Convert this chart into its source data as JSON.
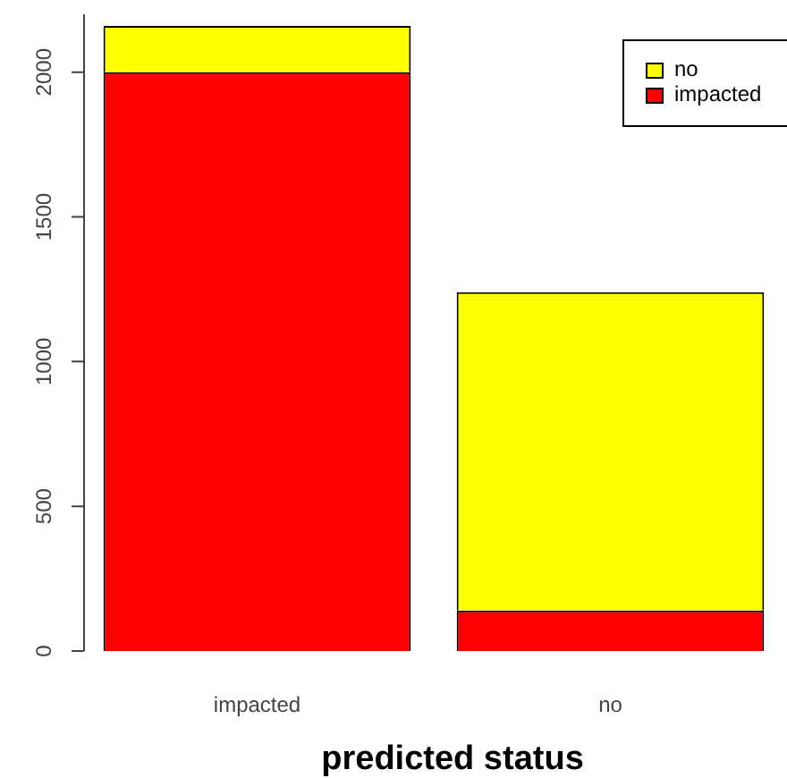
{
  "chart_data": {
    "type": "bar",
    "xlabel": "predicted status",
    "categories": [
      "impacted",
      "no"
    ],
    "stacked": true,
    "series": [
      {
        "name": "impacted",
        "color": "#ff0000",
        "values": [
          2000,
          140
        ]
      },
      {
        "name": "no",
        "color": "#ffff00",
        "values": [
          160,
          1100
        ]
      }
    ],
    "ylim": [
      0,
      2200
    ],
    "yticks": [
      0,
      500,
      1000,
      1500,
      2000
    ],
    "legend": "top right"
  }
}
